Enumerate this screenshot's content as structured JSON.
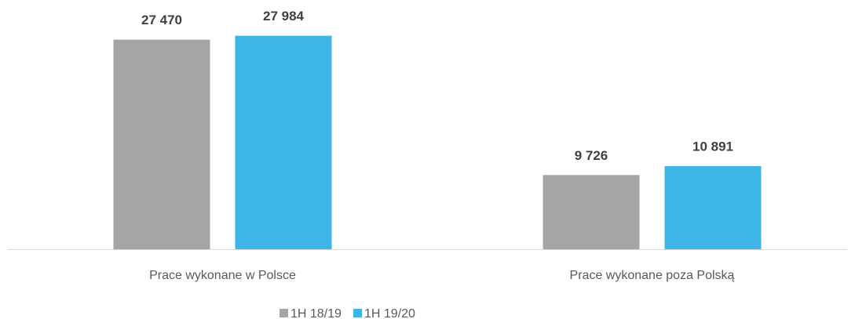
{
  "chart_data": {
    "type": "bar",
    "categories": [
      "Prace wykonane w Polsce",
      "Prace wykonane poza Polską"
    ],
    "series": [
      {
        "name": "1H 18/19",
        "color": "#a5a5a5",
        "values": [
          27470,
          9726
        ],
        "value_labels": [
          "27 470",
          "9 726"
        ]
      },
      {
        "name": "1H 19/20",
        "color": "#3db5e6",
        "values": [
          27984,
          10891
        ],
        "value_labels": [
          "27 984",
          "10 891"
        ]
      }
    ],
    "ylim": [
      0,
      30000
    ]
  }
}
